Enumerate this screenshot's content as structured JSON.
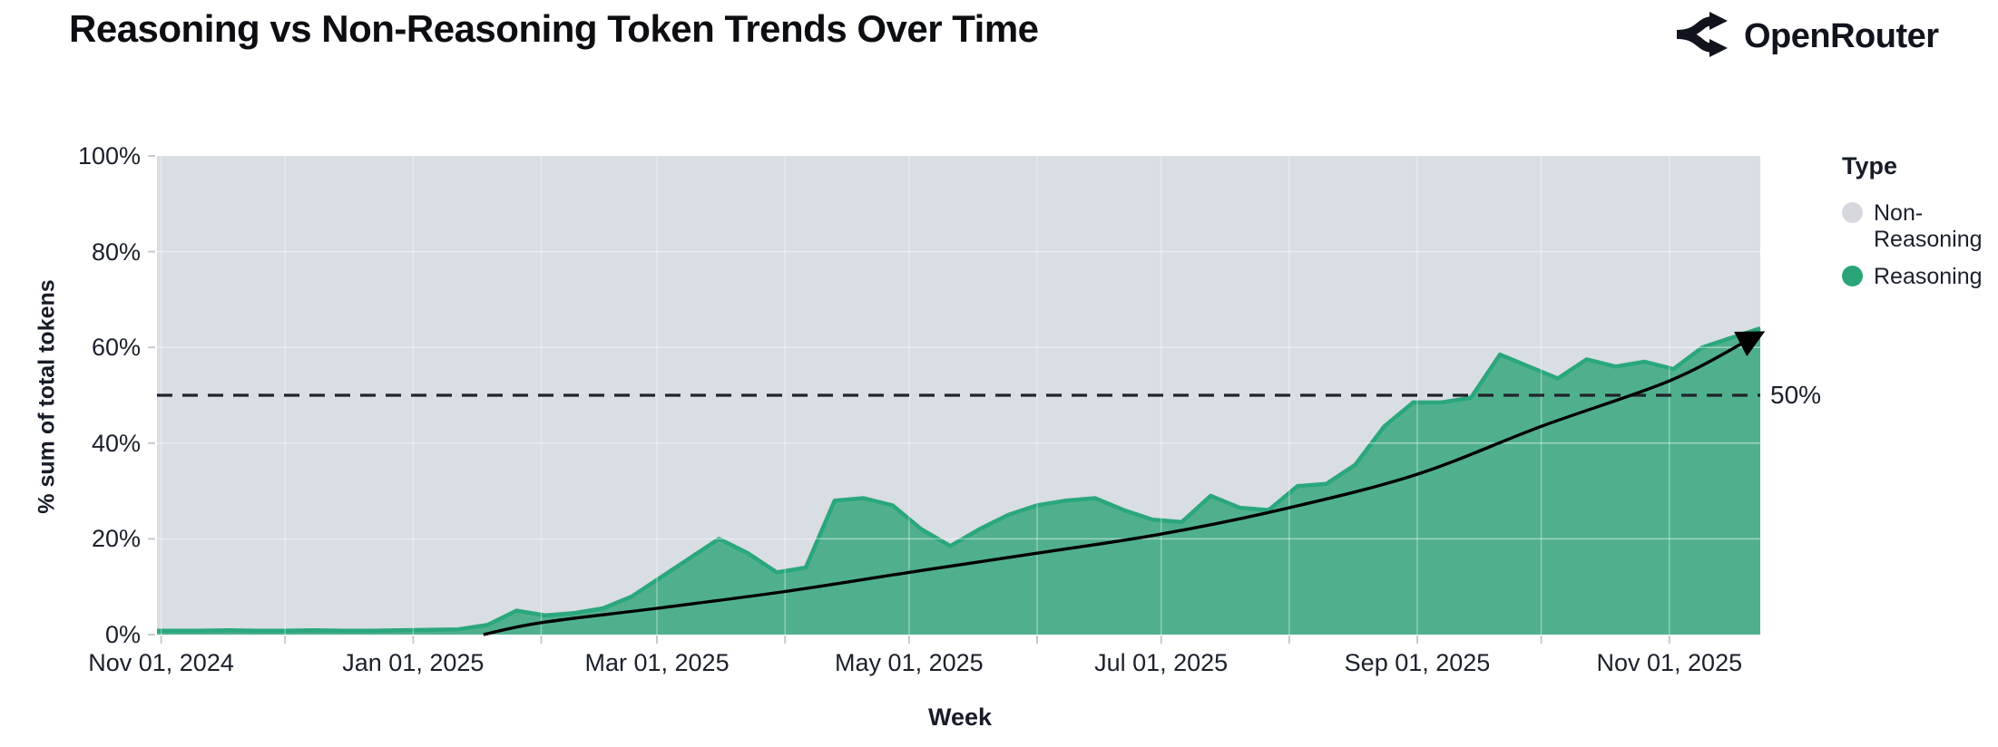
{
  "header": {
    "title": "Reasoning vs Non-Reasoning Token Trends Over Time",
    "brand": "OpenRouter"
  },
  "colors": {
    "page_background": "#ffffff",
    "reasoning_fill": "#50b08e",
    "reasoning_edge": "#2aa77c",
    "non_reasoning_fill": "#d9dde4",
    "legend_non_reasoning_dot": "#d6d8dd",
    "legend_reasoning_dot": "#2aa578",
    "text_dark": "#171c28",
    "dashed_line": "#20242c",
    "trend_arrow": "#000000",
    "grid_line": "#ffffff",
    "axis_tick": "#c7cad1"
  },
  "chart_data": {
    "type": "area",
    "variant": "100-percent-stacked, weekly points",
    "title": "Reasoning vs Non-Reasoning Token Trends Over Time",
    "xlabel": "Week",
    "ylabel": "% sum of total tokens",
    "ylim": [
      0,
      100
    ],
    "grid": true,
    "y_ticks": [
      "0%",
      "20%",
      "40%",
      "60%",
      "80%",
      "100%"
    ],
    "x_ticks": [
      {
        "label": "Nov 01, 2024",
        "date": "2024-11-01"
      },
      {
        "label": "Jan 01, 2025",
        "date": "2025-01-01"
      },
      {
        "label": "Mar 01, 2025",
        "date": "2025-03-01"
      },
      {
        "label": "May 01, 2025",
        "date": "2025-05-01"
      },
      {
        "label": "Jul 01, 2025",
        "date": "2025-07-01"
      },
      {
        "label": "Sep 01, 2025",
        "date": "2025-09-01"
      },
      {
        "label": "Nov 01, 2025",
        "date": "2025-11-01"
      }
    ],
    "x_domain": [
      "2024-10-31",
      "2025-11-23"
    ],
    "legend": {
      "title": "Type",
      "position": "right",
      "items": [
        {
          "label": "Non-Reasoning",
          "color": "#d6d8dd"
        },
        {
          "label": "Reasoning",
          "color": "#2aa578"
        }
      ]
    },
    "reference_line": {
      "value": 50,
      "label": "50%",
      "style": "dashed"
    },
    "series": [
      {
        "name": "Non-Reasoning",
        "color": "#d9dde4",
        "derived": "100 minus Reasoning (areas stack to 100%)"
      },
      {
        "name": "Reasoning",
        "color": "#50b08e",
        "points": [
          [
            "2024-11-03",
            0.8
          ],
          [
            "2024-11-10",
            0.8
          ],
          [
            "2024-11-17",
            0.9
          ],
          [
            "2024-11-24",
            0.8
          ],
          [
            "2024-12-01",
            0.8
          ],
          [
            "2024-12-08",
            0.9
          ],
          [
            "2024-12-15",
            0.8
          ],
          [
            "2024-12-22",
            0.8
          ],
          [
            "2024-12-29",
            0.9
          ],
          [
            "2025-01-05",
            1.0
          ],
          [
            "2025-01-12",
            1.1
          ],
          [
            "2025-01-19",
            2.0
          ],
          [
            "2025-01-26",
            5.0
          ],
          [
            "2025-02-02",
            4.0
          ],
          [
            "2025-02-09",
            4.5
          ],
          [
            "2025-02-16",
            5.5
          ],
          [
            "2025-02-23",
            8.0
          ],
          [
            "2025-03-02",
            12.0
          ],
          [
            "2025-03-09",
            16.0
          ],
          [
            "2025-03-16",
            20.0
          ],
          [
            "2025-03-23",
            17.0
          ],
          [
            "2025-03-30",
            13.0
          ],
          [
            "2025-04-06",
            14.0
          ],
          [
            "2025-04-13",
            28.0
          ],
          [
            "2025-04-20",
            28.5
          ],
          [
            "2025-04-27",
            27.0
          ],
          [
            "2025-05-04",
            22.0
          ],
          [
            "2025-05-11",
            18.5
          ],
          [
            "2025-05-18",
            22.0
          ],
          [
            "2025-05-25",
            25.0
          ],
          [
            "2025-06-01",
            27.0
          ],
          [
            "2025-06-08",
            28.0
          ],
          [
            "2025-06-15",
            28.5
          ],
          [
            "2025-06-22",
            26.0
          ],
          [
            "2025-06-29",
            24.0
          ],
          [
            "2025-07-06",
            23.5
          ],
          [
            "2025-07-13",
            29.0
          ],
          [
            "2025-07-20",
            26.5
          ],
          [
            "2025-07-27",
            26.0
          ],
          [
            "2025-08-03",
            31.0
          ],
          [
            "2025-08-10",
            31.5
          ],
          [
            "2025-08-17",
            35.5
          ],
          [
            "2025-08-24",
            43.5
          ],
          [
            "2025-08-31",
            48.5
          ],
          [
            "2025-09-07",
            48.5
          ],
          [
            "2025-09-14",
            49.5
          ],
          [
            "2025-09-21",
            58.5
          ],
          [
            "2025-09-28",
            56.0
          ],
          [
            "2025-10-05",
            53.5
          ],
          [
            "2025-10-12",
            57.5
          ],
          [
            "2025-10-19",
            56.0
          ],
          [
            "2025-10-26",
            57.0
          ],
          [
            "2025-11-02",
            55.5
          ],
          [
            "2025-11-09",
            60.0
          ],
          [
            "2025-11-16",
            62.0
          ],
          [
            "2025-11-23",
            64.0
          ]
        ]
      }
    ],
    "trend_arrow": {
      "description": "black curved arrow from 0% in mid-Jan 2025 up to ~62% in late Nov 2025",
      "points": [
        [
          "2025-01-18",
          0
        ],
        [
          "2025-02-01",
          2.5
        ],
        [
          "2025-03-01",
          5.5
        ],
        [
          "2025-04-01",
          9
        ],
        [
          "2025-05-01",
          13
        ],
        [
          "2025-06-01",
          17
        ],
        [
          "2025-07-01",
          21
        ],
        [
          "2025-08-01",
          26.5
        ],
        [
          "2025-09-01",
          33.5
        ],
        [
          "2025-10-01",
          43.5
        ],
        [
          "2025-11-01",
          53
        ],
        [
          "2025-11-20",
          61.5
        ]
      ]
    }
  }
}
